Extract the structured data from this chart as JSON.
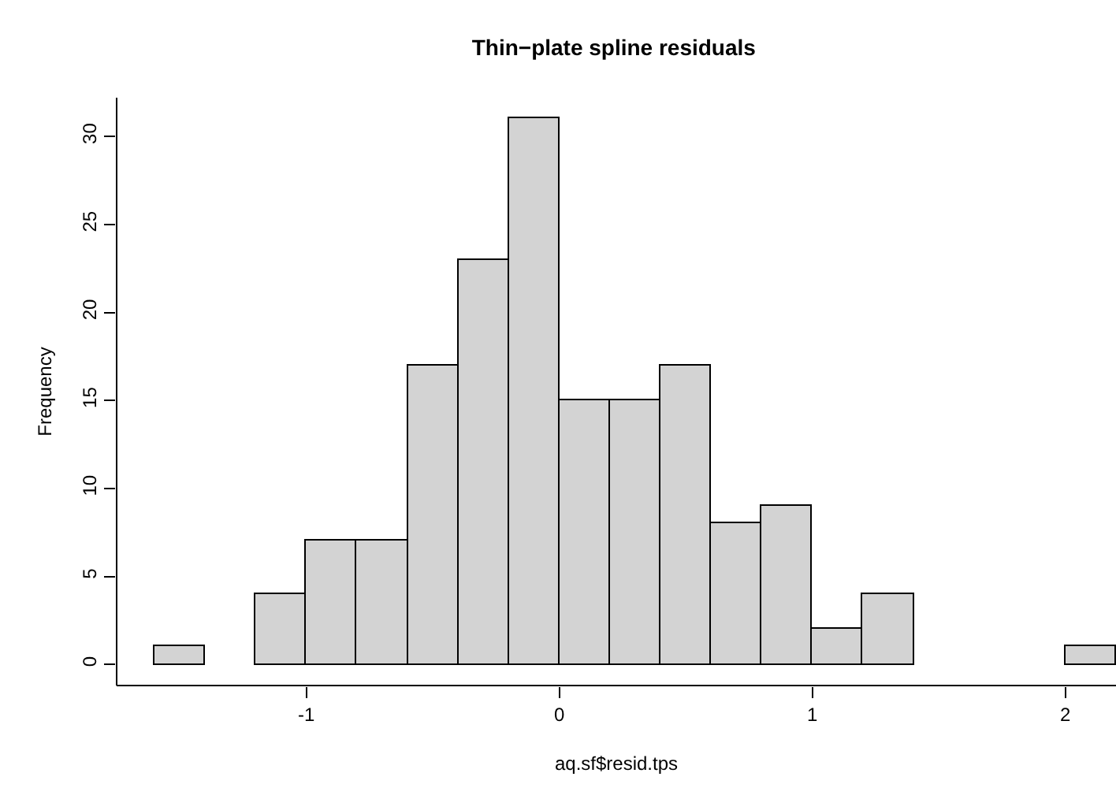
{
  "chart_data": {
    "type": "histogram",
    "title": "Thin−plate spline residuals",
    "xlabel": "aq.sf$resid.tps",
    "ylabel": "Frequency",
    "bins": [
      -1.6,
      -1.4,
      -1.2,
      -1.0,
      -0.8,
      -0.6,
      -0.4,
      -0.2,
      0,
      0.2,
      0.4,
      0.6,
      0.8,
      1.0,
      1.2,
      1.4,
      1.6,
      1.8,
      2.0,
      2.2
    ],
    "values": [
      1,
      0,
      4,
      7,
      7,
      17,
      23,
      31,
      15,
      15,
      17,
      8,
      9,
      2,
      4,
      0,
      0,
      0,
      1
    ],
    "color": "#d3d3d3",
    "xlim": [
      -1.75,
      2.2
    ],
    "xticks": [
      -1,
      0,
      1,
      2
    ],
    "ylim": [
      -1.2,
      32.2
    ],
    "yticks": [
      0,
      5,
      10,
      15,
      20,
      25,
      30
    ],
    "grid": false,
    "legend": false
  }
}
